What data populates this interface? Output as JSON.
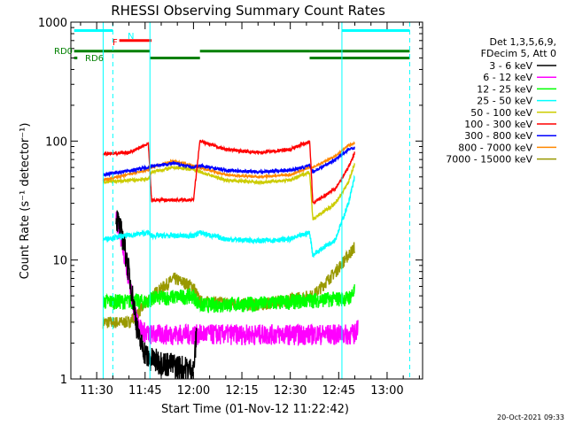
{
  "chart_data": {
    "type": "line",
    "title": "RHESSI Observing Summary Count Rates",
    "xlabel": "Start Time (01-Nov-12 11:22:42)",
    "ylabel": "Count Rate (s⁻¹ detector⁻¹)",
    "yscale": "log",
    "ylim": [
      1,
      1000
    ],
    "xlim_min": [
      682,
      791
    ],
    "x_ticks": [
      "11:30",
      "11:45",
      "12:00",
      "12:15",
      "12:30",
      "12:45",
      "13:00"
    ],
    "x_tick_min": [
      690,
      705,
      720,
      735,
      750,
      765,
      780
    ],
    "y_ticks": [
      "1",
      "10",
      "100",
      "1000"
    ],
    "y_tick_values": [
      1,
      10,
      100,
      1000
    ],
    "legend_header": [
      "Det 1,3,5,6,9,",
      "FDecim 5, Att 0"
    ],
    "legend_position": "right",
    "timestamp": "20-Oct-2021 09:33",
    "annotations": {
      "N": "N",
      "F": "F",
      "RD0": "RD0",
      "RD6": "RD6"
    },
    "vlines": {
      "solid_cyan_min": [
        692,
        706.5,
        766
      ],
      "dashed_cyan_min": [
        695,
        787
      ]
    },
    "flag_bars": [
      {
        "label": "N",
        "color": "#00ffff",
        "level": 850,
        "segments": [
          [
            683,
            695
          ],
          [
            766,
            787
          ]
        ]
      },
      {
        "label": "F",
        "color": "#ff0000",
        "level": 700,
        "segments": [
          [
            697,
            707
          ]
        ]
      },
      {
        "label": "RD0",
        "color": "#008000",
        "level": 570,
        "segments": [
          [
            683,
            706.5
          ],
          [
            722,
            756
          ],
          [
            756,
            787
          ]
        ]
      },
      {
        "label": "RD6",
        "color": "#008000",
        "level": 500,
        "segments": [
          [
            683,
            684
          ],
          [
            706.5,
            722
          ],
          [
            756,
            787
          ]
        ]
      }
    ],
    "series": [
      {
        "name": "3 - 6 keV",
        "color": "#000000",
        "profile": [
          [
            696,
            24
          ],
          [
            698,
            16
          ],
          [
            700,
            8
          ],
          [
            702,
            3.5
          ],
          [
            703,
            2.2
          ],
          [
            706,
            1.5
          ],
          [
            720,
            1.2
          ],
          [
            721,
            2.5
          ]
        ],
        "noise": 0.25
      },
      {
        "name": "6 - 12 keV",
        "color": "#ff00ff",
        "profile": [
          [
            696,
            22
          ],
          [
            698,
            14
          ],
          [
            700,
            7
          ],
          [
            702,
            3.4
          ],
          [
            704,
            2.6
          ],
          [
            706,
            2.4
          ],
          [
            770,
            2.4
          ],
          [
            771,
            3
          ]
        ],
        "noise": 0.2
      },
      {
        "name": "12 - 25 keV",
        "color": "#00ff00",
        "profile": [
          [
            692,
            4.5
          ],
          [
            706,
            4.5
          ],
          [
            707,
            4.8
          ],
          [
            720,
            5
          ],
          [
            722,
            4.2
          ],
          [
            740,
            4.3
          ],
          [
            756,
            4.6
          ],
          [
            768,
            4.8
          ],
          [
            770,
            5.5
          ]
        ],
        "noise": 0.15
      },
      {
        "name": "25 - 50 keV",
        "color": "#00ffff",
        "profile": [
          [
            692,
            15
          ],
          [
            706,
            17
          ],
          [
            707,
            16
          ],
          [
            720,
            16
          ],
          [
            722,
            17
          ],
          [
            730,
            15
          ],
          [
            740,
            14.5
          ],
          [
            750,
            15
          ],
          [
            756,
            17
          ],
          [
            757,
            11
          ],
          [
            764,
            15
          ],
          [
            768,
            30
          ],
          [
            770,
            50
          ]
        ],
        "noise": 0.05
      },
      {
        "name": "50 - 100 keV",
        "color": "#cccc00",
        "profile": [
          [
            692,
            45
          ],
          [
            706,
            48
          ],
          [
            707,
            55
          ],
          [
            714,
            60
          ],
          [
            720,
            58
          ],
          [
            722,
            55
          ],
          [
            730,
            47
          ],
          [
            740,
            45
          ],
          [
            750,
            47
          ],
          [
            756,
            55
          ],
          [
            757,
            22
          ],
          [
            764,
            30
          ],
          [
            768,
            45
          ],
          [
            770,
            65
          ]
        ],
        "noise": 0.03
      },
      {
        "name": "100 - 300 keV",
        "color": "#ff0000",
        "profile": [
          [
            692,
            78
          ],
          [
            700,
            80
          ],
          [
            706,
            95
          ],
          [
            707,
            32
          ],
          [
            720,
            32
          ],
          [
            722,
            100
          ],
          [
            730,
            85
          ],
          [
            740,
            80
          ],
          [
            750,
            85
          ],
          [
            756,
            100
          ],
          [
            757,
            30
          ],
          [
            764,
            40
          ],
          [
            768,
            60
          ],
          [
            770,
            80
          ]
        ],
        "noise": 0.03
      },
      {
        "name": "300 - 800 keV",
        "color": "#0000ff",
        "profile": [
          [
            692,
            52
          ],
          [
            706,
            60
          ],
          [
            707,
            62
          ],
          [
            714,
            65
          ],
          [
            720,
            60
          ],
          [
            722,
            62
          ],
          [
            730,
            57
          ],
          [
            740,
            55
          ],
          [
            750,
            57
          ],
          [
            756,
            62
          ],
          [
            757,
            55
          ],
          [
            764,
            70
          ],
          [
            768,
            85
          ],
          [
            770,
            88
          ]
        ],
        "noise": 0.03
      },
      {
        "name": "800 - 7000 keV",
        "color": "#ff8800",
        "profile": [
          [
            692,
            47
          ],
          [
            706,
            57
          ],
          [
            707,
            60
          ],
          [
            714,
            68
          ],
          [
            720,
            62
          ],
          [
            722,
            60
          ],
          [
            730,
            52
          ],
          [
            740,
            50
          ],
          [
            750,
            52
          ],
          [
            756,
            60
          ],
          [
            757,
            60
          ],
          [
            764,
            75
          ],
          [
            768,
            92
          ],
          [
            770,
            96
          ]
        ],
        "noise": 0.02
      },
      {
        "name": "7000 - 15000 keV",
        "color": "#999900",
        "profile": [
          [
            692,
            3
          ],
          [
            700,
            3
          ],
          [
            706,
            4.5
          ],
          [
            707,
            5
          ],
          [
            714,
            7
          ],
          [
            720,
            6
          ],
          [
            722,
            4.5
          ],
          [
            740,
            4.2
          ],
          [
            756,
            5
          ],
          [
            757,
            5
          ],
          [
            764,
            8
          ],
          [
            768,
            11
          ],
          [
            770,
            13
          ]
        ],
        "noise": 0.12
      }
    ]
  }
}
